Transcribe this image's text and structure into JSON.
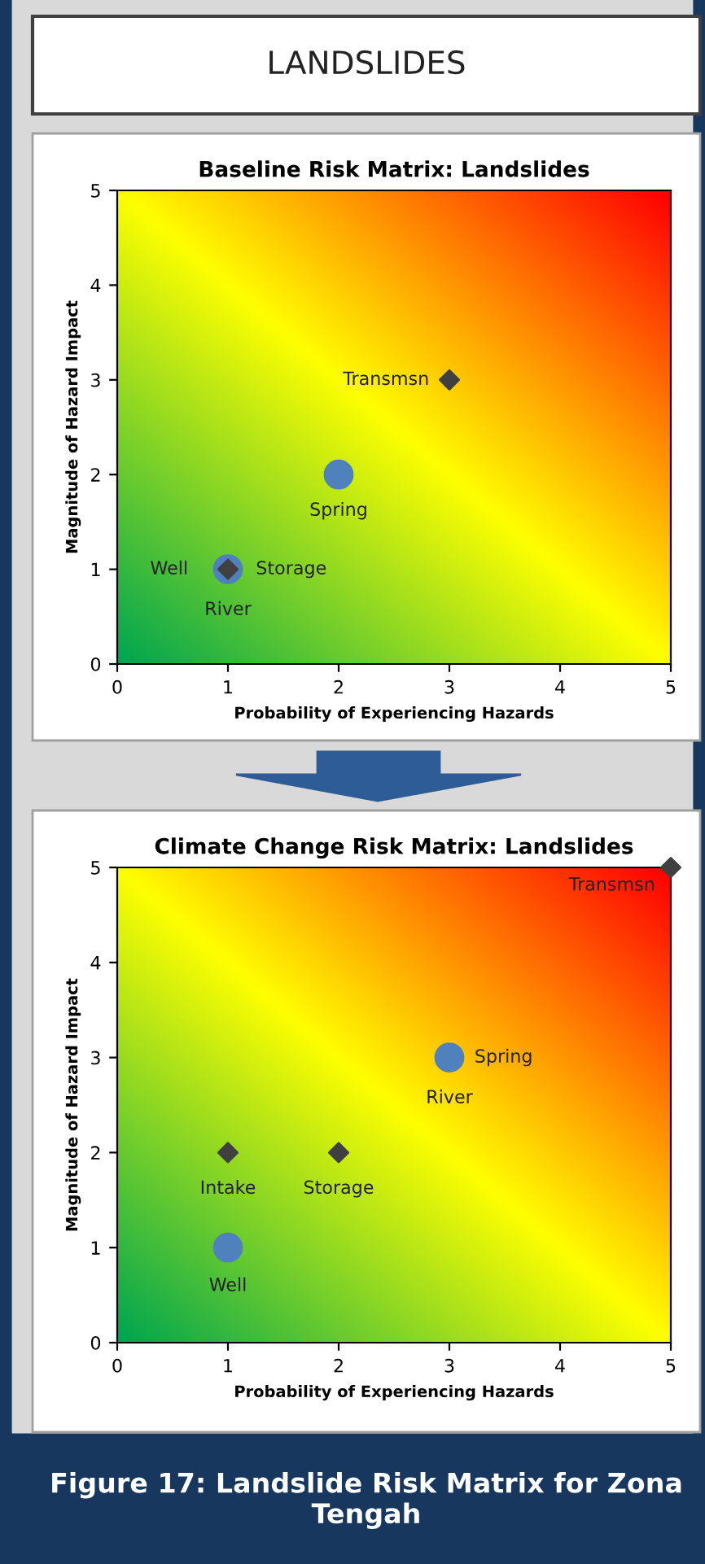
{
  "chart_data": [
    {
      "type": "scatter",
      "title": "Baseline Risk Matrix: Landslides",
      "xlabel": "Probability of Experiencing Hazards",
      "ylabel": "Magnitude of Hazard Impact",
      "xlim": [
        0,
        5
      ],
      "ylim": [
        0,
        5
      ],
      "xticks": [
        0,
        1,
        2,
        3,
        4,
        5
      ],
      "yticks": [
        0,
        1,
        2,
        3,
        4,
        5
      ],
      "grid": false,
      "legend": false,
      "series": [
        {
          "marker": "circle",
          "color": "#4f81bd",
          "x": [
            2,
            1
          ],
          "values": [
            2,
            1
          ]
        },
        {
          "marker": "diamond",
          "color": "#404040",
          "x": [
            3,
            1
          ],
          "values": [
            3,
            1
          ]
        }
      ],
      "annotations": [
        "LANDSLIDES",
        {
          "text": "Transmsn",
          "x": 3,
          "y": 3
        },
        {
          "text": "Spring",
          "x": 2,
          "y": 2
        },
        {
          "text": "Well",
          "x": 1,
          "y": 1
        },
        {
          "text": "Storage",
          "x": 1,
          "y": 1
        },
        {
          "text": "River",
          "x": 1,
          "y": 1
        }
      ]
    },
    {
      "type": "scatter",
      "title": "Climate Change Risk Matrix: Landslides",
      "xlabel": "Probability of Experiencing Hazards",
      "ylabel": "Magnitude of Hazard Impact",
      "xlim": [
        0,
        5
      ],
      "ylim": [
        0,
        5
      ],
      "xticks": [
        0,
        1,
        2,
        3,
        4,
        5
      ],
      "yticks": [
        0,
        1,
        2,
        3,
        4,
        5
      ],
      "grid": false,
      "legend": false,
      "series": [
        {
          "marker": "circle",
          "color": "#4f81bd",
          "x": [
            3,
            1
          ],
          "values": [
            3,
            1
          ]
        },
        {
          "marker": "diamond",
          "color": "#404040",
          "x": [
            5,
            1,
            2
          ],
          "values": [
            5,
            2,
            2
          ]
        }
      ],
      "annotations": [
        "Figure 17: Landslide Risk Matrix for Zona Tengah",
        {
          "text": "Transmsn",
          "x": 5,
          "y": 5
        },
        {
          "text": "Spring",
          "x": 3,
          "y": 3
        },
        {
          "text": "River",
          "x": 3,
          "y": 3
        },
        {
          "text": "Intake",
          "x": 1,
          "y": 2
        },
        {
          "text": "Storage",
          "x": 2,
          "y": 2
        },
        {
          "text": "Well",
          "x": 1,
          "y": 1
        }
      ]
    }
  ]
}
